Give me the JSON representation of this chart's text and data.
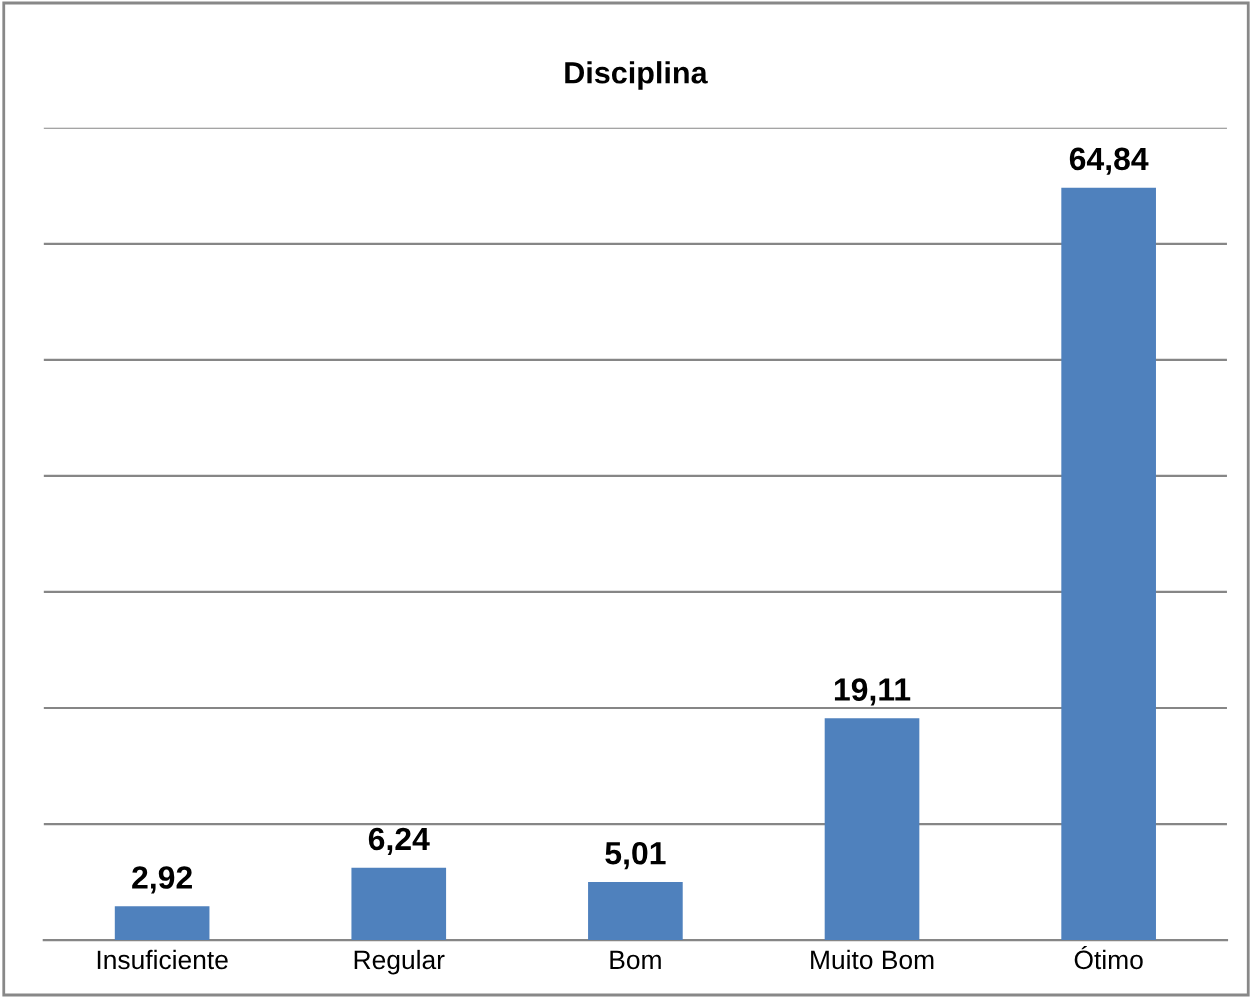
{
  "chart_data": {
    "type": "bar",
    "title": "Disciplina",
    "categories": [
      "Insuficiente",
      "Regular",
      "Bom",
      "Muito Bom",
      "Ótimo"
    ],
    "values": [
      2.92,
      6.24,
      5.01,
      19.11,
      64.84
    ],
    "color": "#4f81bd",
    "value_labels": [
      "2,92",
      "6,24",
      "5,01",
      "19,11",
      "64,84"
    ],
    "ylim": [
      0,
      70
    ],
    "yticks": [
      {
        "value": 0,
        "label": null
      },
      {
        "value": 10,
        "label": null
      },
      {
        "value": 20,
        "label": null
      },
      {
        "value": 30,
        "label": null
      },
      {
        "value": 40,
        "label": null
      },
      {
        "value": 50,
        "label": null
      },
      {
        "value": 60,
        "label": null
      },
      {
        "value": 70,
        "label": null
      }
    ],
    "grid": "y",
    "tick_labels": "x"
  }
}
